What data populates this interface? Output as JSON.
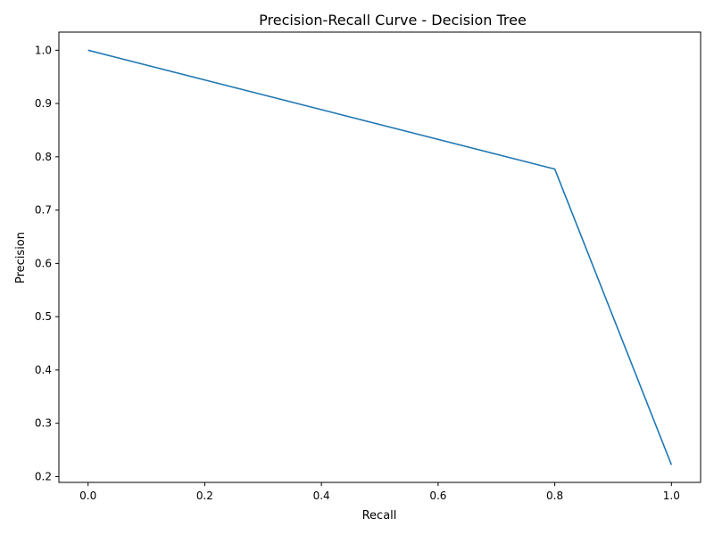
{
  "chart_data": {
    "type": "line",
    "title": "Precision-Recall Curve - Decision Tree",
    "xlabel": "Recall",
    "ylabel": "Precision",
    "xlim": [
      -0.05,
      1.05
    ],
    "ylim": [
      0.189,
      1.034
    ],
    "xticks": [
      0.0,
      0.2,
      0.4,
      0.6,
      0.8,
      1.0
    ],
    "xtick_labels": [
      "0.0",
      "0.2",
      "0.4",
      "0.6",
      "0.8",
      "1.0"
    ],
    "yticks": [
      0.2,
      0.3,
      0.4,
      0.5,
      0.6,
      0.7,
      0.8,
      0.9,
      1.0
    ],
    "ytick_labels": [
      "0.2",
      "0.3",
      "0.4",
      "0.5",
      "0.6",
      "0.7",
      "0.8",
      "0.9",
      "1.0"
    ],
    "grid": false,
    "line_color": "#1f77b4",
    "series": [
      {
        "x": [
          0.0,
          0.8,
          1.0
        ],
        "y": [
          1.0,
          0.777,
          0.222
        ]
      }
    ]
  }
}
